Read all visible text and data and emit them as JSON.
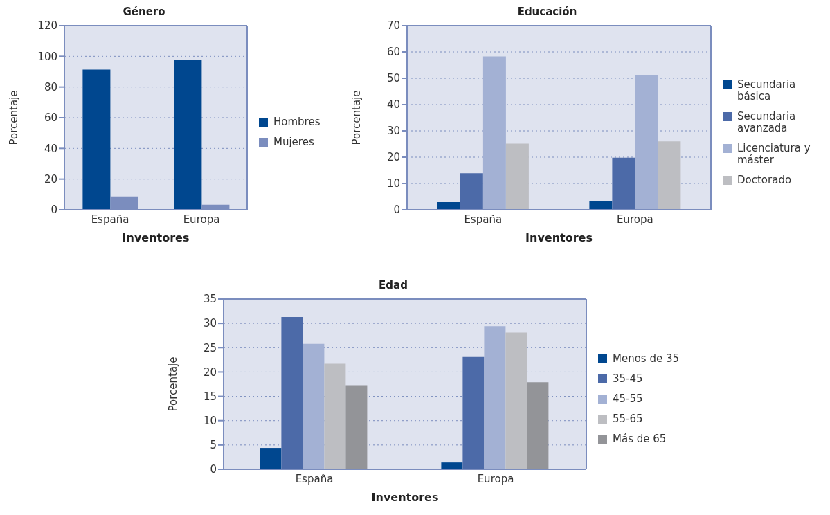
{
  "chart_data": [
    {
      "type": "bar",
      "title": "Género",
      "xlabel": "Inventores",
      "ylabel": "Porcentaje",
      "categories": [
        "España",
        "Europa"
      ],
      "ylim": [
        0,
        120
      ],
      "yticks": [
        0,
        20,
        40,
        60,
        80,
        100,
        120
      ],
      "grid": "y",
      "legend": "right",
      "series": [
        {
          "name": "Hombres",
          "color": "#00478f",
          "values": [
            91.3,
            97.4
          ]
        },
        {
          "name": "Mujeres",
          "color": "#7b8dbe",
          "values": [
            8.7,
            3.3
          ]
        }
      ]
    },
    {
      "type": "bar",
      "title": "Educación",
      "xlabel": "Inventores",
      "ylabel": "Porcentaje",
      "categories": [
        "España",
        "Europa"
      ],
      "ylim": [
        0,
        70
      ],
      "yticks": [
        0,
        10,
        20,
        30,
        40,
        50,
        60,
        70
      ],
      "grid": "y",
      "legend": "right",
      "series": [
        {
          "name": "Secundaria básica",
          "color": "#00478f",
          "values": [
            2.9,
            3.4
          ]
        },
        {
          "name": "Secundaria avanzada",
          "color": "#4c6aa8",
          "values": [
            13.9,
            19.8
          ]
        },
        {
          "name": "Licenciatura y máster",
          "color": "#a3b1d4",
          "values": [
            58.3,
            51.1
          ]
        },
        {
          "name": "Doctorado",
          "color": "#bdbec2",
          "values": [
            25.1,
            26
          ]
        }
      ]
    },
    {
      "type": "bar",
      "title": "Edad",
      "xlabel": "Inventores",
      "ylabel": "Porcentaje",
      "categories": [
        "España",
        "Europa"
      ],
      "ylim": [
        0,
        35
      ],
      "yticks": [
        0,
        5,
        10,
        15,
        20,
        25,
        30,
        35
      ],
      "grid": "y",
      "legend": "right",
      "series": [
        {
          "name": "Menos de 35",
          "color": "#00478f",
          "values": [
            4.4,
            1.4
          ]
        },
        {
          "name": "35-45",
          "color": "#4c6aa8",
          "values": [
            31.3,
            23.1
          ]
        },
        {
          "name": "45-55",
          "color": "#a3b1d4",
          "values": [
            25.8,
            29.4
          ]
        },
        {
          "name": "55-65",
          "color": "#bdbec2",
          "values": [
            21.7,
            28.1
          ]
        },
        {
          "name": "Más de 65",
          "color": "#939498",
          "values": [
            17.3,
            17.9
          ]
        }
      ]
    }
  ]
}
